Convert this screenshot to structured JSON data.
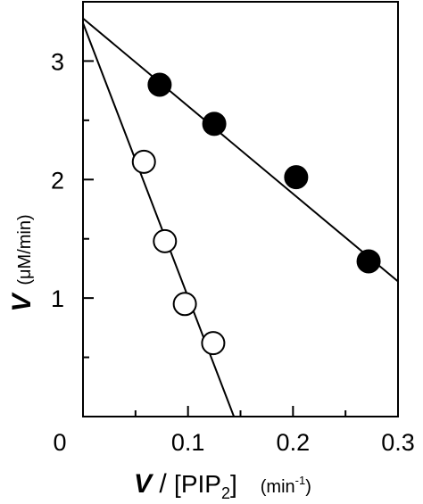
{
  "chart_data": {
    "type": "scatter",
    "xlim": [
      0,
      0.3
    ],
    "ylim": [
      0,
      3.5
    ],
    "x_ticks": [
      0,
      0.1,
      0.2,
      0.3
    ],
    "x_tick_labels": [
      "0",
      "0.1",
      "0.2",
      "0.3"
    ],
    "y_ticks": [
      1,
      2,
      3
    ],
    "y_tick_labels": [
      "1",
      "2",
      "3"
    ],
    "grid": false,
    "xlabel": {
      "var": "V",
      "slash": " / ",
      "bracket_open": "[",
      "pip_name": "PIP",
      "pip_sub": "2",
      "bracket_close": "]",
      "unit_open": "(min",
      "unit_sup": "-1",
      "unit_close": ")"
    },
    "ylabel": {
      "var": "V",
      "unit": "(μM/min)"
    },
    "series": [
      {
        "marker": "filled-circle",
        "color": "#000000",
        "points": [
          {
            "x": 0.073,
            "y": 2.8
          },
          {
            "x": 0.125,
            "y": 2.47
          },
          {
            "x": 0.203,
            "y": 2.02
          },
          {
            "x": 0.272,
            "y": 1.31
          }
        ],
        "fit": {
          "intercept": 3.36,
          "slope": -7.4
        }
      },
      {
        "marker": "open-circle",
        "color": "#000000",
        "points": [
          {
            "x": 0.058,
            "y": 2.15
          },
          {
            "x": 0.078,
            "y": 1.48
          },
          {
            "x": 0.097,
            "y": 0.95
          },
          {
            "x": 0.124,
            "y": 0.62
          }
        ],
        "fit": {
          "intercept": 3.32,
          "slope": -23.1
        }
      }
    ]
  }
}
